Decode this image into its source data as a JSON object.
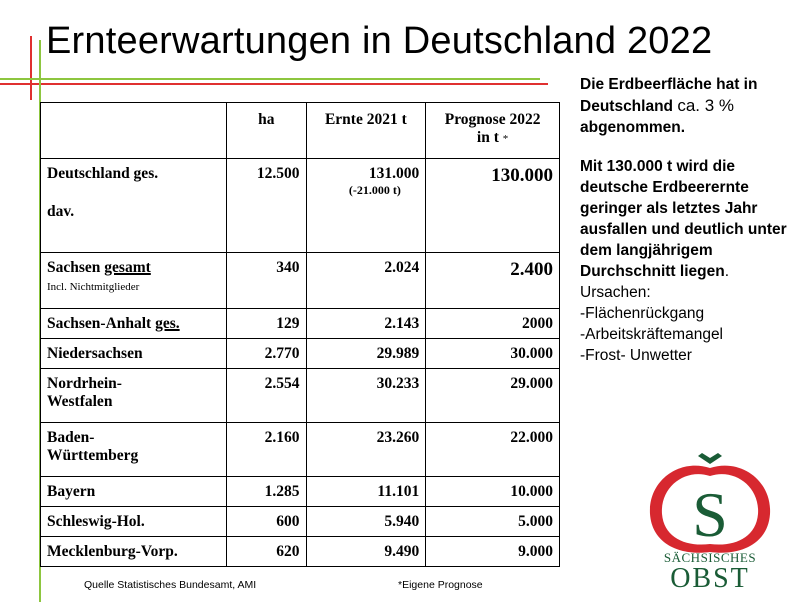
{
  "title": "Ernteerwartungen in Deutschland 2022",
  "table": {
    "headers": {
      "col1": "ha",
      "col2": "Ernte 2021 t",
      "col3_line1": "Prognose 2022",
      "col3_line2": "in t",
      "col3_mark": "*"
    },
    "deutschland": {
      "label": "Deutschland ges.",
      "sublabel": "dav.",
      "ha": "12.500",
      "ernte": "131.000",
      "ernte_note": "(-21.000 t)",
      "prognose": "130.000"
    },
    "sachsen": {
      "label_pre": "Sachsen",
      "label_ul": "gesamt",
      "note": "Incl. Nichtmitglieder",
      "ha": "340",
      "ernte": "2.024",
      "prognose": "2.400"
    },
    "sachsen_anhalt": {
      "label_pre": "Sachsen-Anhalt",
      "label_ul": "ges.",
      "ha": "129",
      "ernte": "2.143",
      "prognose": "2000"
    },
    "rows": [
      {
        "line1": "Niedersachsen",
        "line2": "",
        "ha": "2.770",
        "ernte": "29.989",
        "prognose": "30.000"
      },
      {
        "line1": "Nordrhein-",
        "line2": "Westfalen",
        "ha": "2.554",
        "ernte": "30.233",
        "prognose": "29.000"
      },
      {
        "line1": "Baden-",
        "line2": "Württemberg",
        "ha": "2.160",
        "ernte": "23.260",
        "prognose": "22.000"
      },
      {
        "line1": "Bayern",
        "line2": "",
        "ha": "1.285",
        "ernte": "11.101",
        "prognose": "10.000"
      },
      {
        "line1": "Schleswig-Hol.",
        "line2": "",
        "ha": "600",
        "ernte": "5.940",
        "prognose": "5.000"
      },
      {
        "line1": "Mecklenburg-Vorp.",
        "line2": "",
        "ha": "620",
        "ernte": "9.490",
        "prognose": "9.000"
      }
    ]
  },
  "side": {
    "p1_a": "Die Erdbeerfläche hat in Deutschland ",
    "p1_b": "ca. 3 %",
    "p1_c": " abgenommen.",
    "p2_a": "Mit  130.000 t wird die deutsche Erdbeerernte geringer als letztes Jahr ausfallen und deutlich unter dem langjährigem Durchschnitt liegen",
    "p2_b": ".",
    "causes_title": "Ursachen:",
    "causes": [
      "-Flächenrückgang",
      "-Arbeitskräftemangel",
      "-Frost- Unwetter"
    ]
  },
  "footer": {
    "source": "Quelle  Statistisches Bundesamt, AMI",
    "note": "*Eigene Prognose"
  },
  "logo": {
    "letter": "S",
    "line1": "SÄCHSISCHES",
    "line2": "OBST"
  },
  "colors": {
    "red": "#e03030",
    "green": "#8dc63f",
    "logo_red": "#d7282f",
    "logo_green": "#1a5c36"
  }
}
